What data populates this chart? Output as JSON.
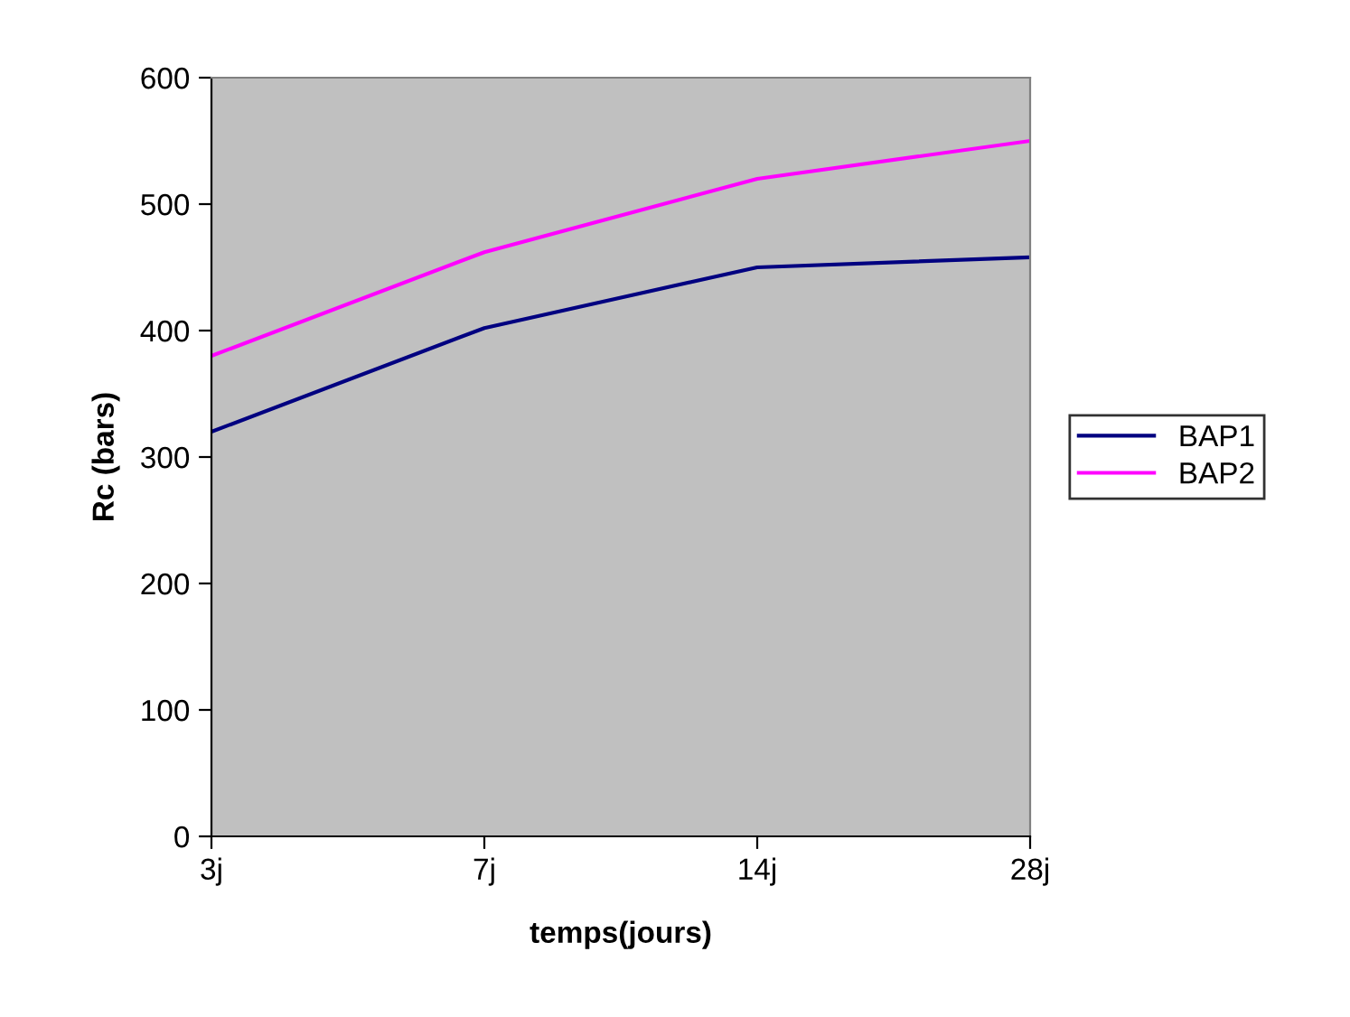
{
  "chart_data": {
    "type": "line",
    "xlabel": "temps(jours)",
    "ylabel": "Rc (bars)",
    "categories": [
      "3j",
      "7j",
      "14j",
      "28j"
    ],
    "series": [
      {
        "name": "BAP1",
        "color": "#000080",
        "values": [
          320,
          402,
          450,
          458
        ]
      },
      {
        "name": "BAP2",
        "color": "#ff00ff",
        "values": [
          380,
          462,
          520,
          550
        ]
      }
    ],
    "ylim": [
      0,
      600
    ],
    "yticks": [
      0,
      100,
      200,
      300,
      400,
      500,
      600
    ],
    "grid": false,
    "legend": "right",
    "marker": "none",
    "line_style": "solid"
  }
}
